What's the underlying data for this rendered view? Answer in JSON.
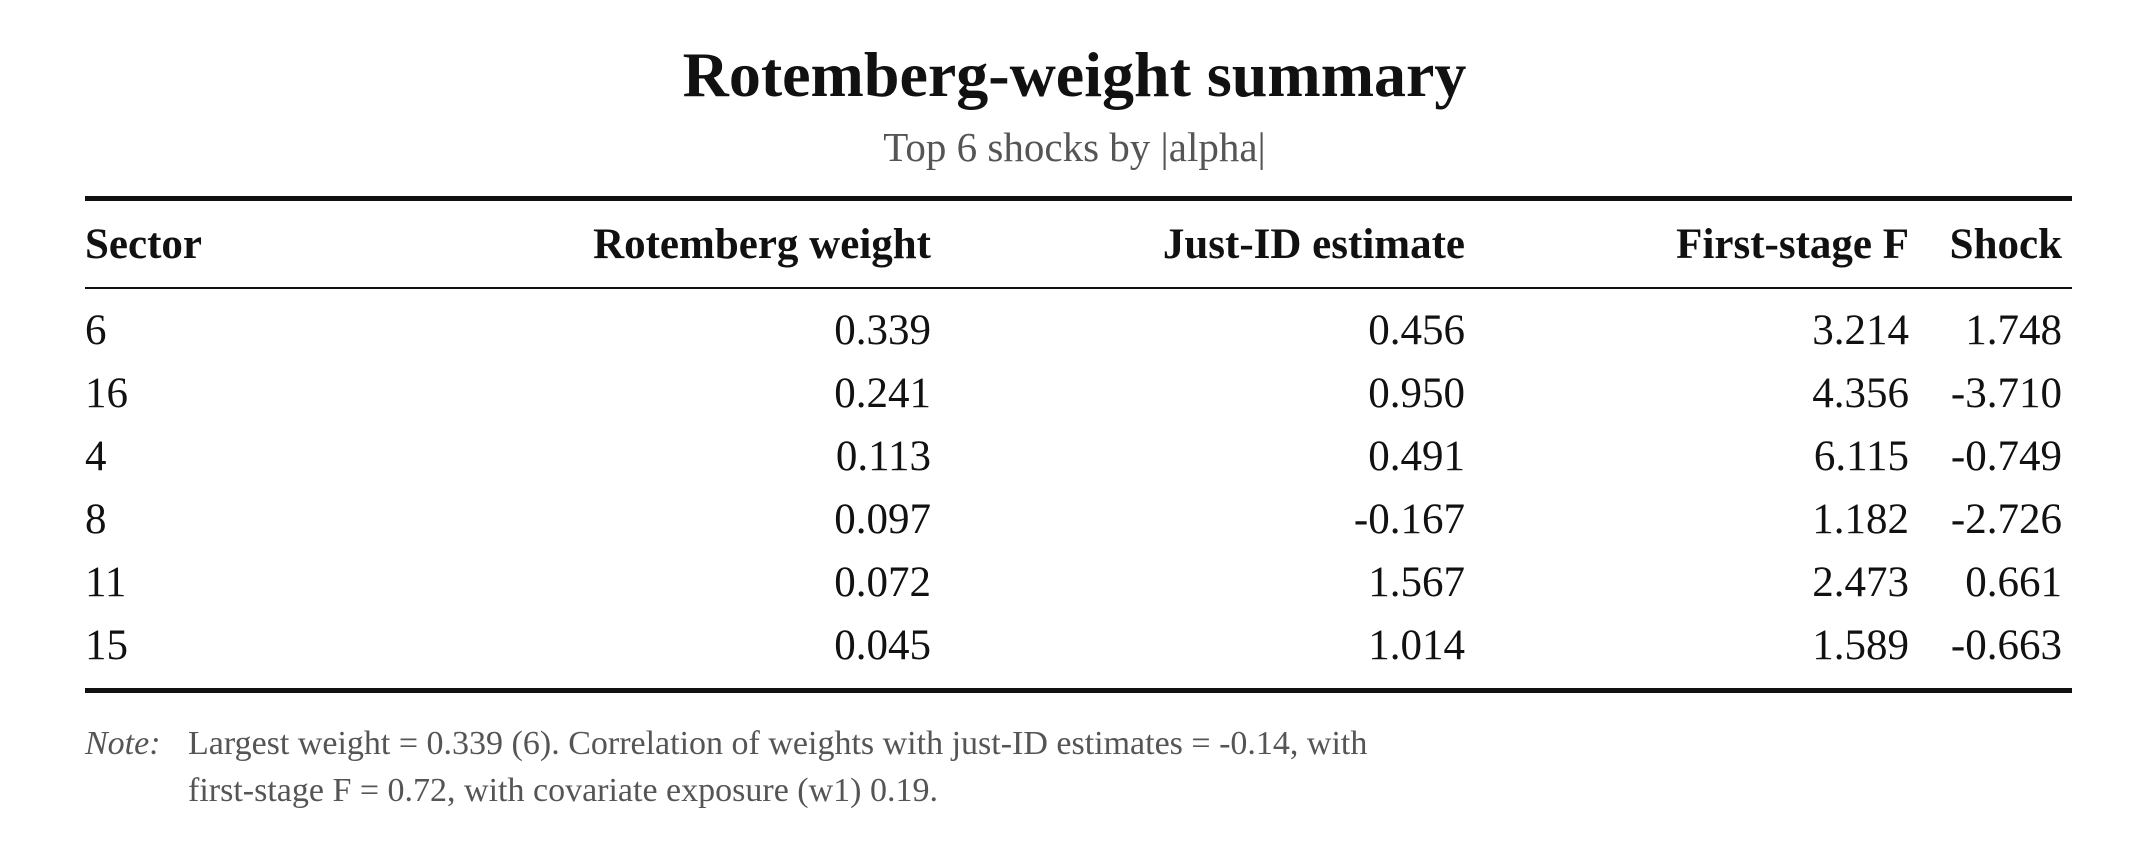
{
  "title": "Rotemberg-weight summary",
  "subtitle": "Top 6 shocks by |alpha|",
  "table": {
    "headers": [
      "Sector",
      "Rotemberg weight",
      "Just-ID estimate",
      "First-stage F",
      "Shock"
    ],
    "rows": [
      [
        "6",
        "0.339",
        "0.456",
        "3.214",
        "1.748"
      ],
      [
        "16",
        "0.241",
        "0.950",
        "4.356",
        "-3.710"
      ],
      [
        "4",
        "0.113",
        "0.491",
        "6.115",
        "-0.749"
      ],
      [
        "8",
        "0.097",
        "-0.167",
        "1.182",
        "-2.726"
      ],
      [
        "11",
        "0.072",
        "1.567",
        "2.473",
        "0.661"
      ],
      [
        "15",
        "0.045",
        "1.014",
        "1.589",
        "-0.663"
      ]
    ]
  },
  "note": {
    "label": "Note:",
    "lines": [
      "Largest weight = 0.339 (6). Correlation of weights with just-ID estimates = -0.14, with",
      "first-stage F = 0.72, with covariate exposure (w1) 0.19."
    ]
  }
}
